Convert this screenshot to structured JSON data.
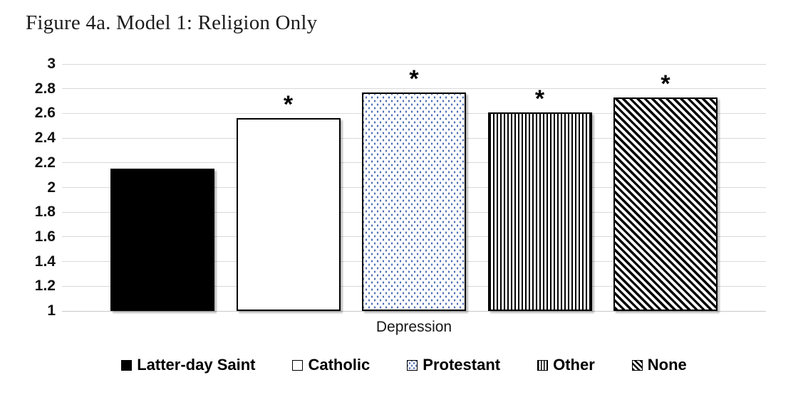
{
  "chart_data": {
    "type": "bar",
    "title": "Figure 4a. Model 1: Religion Only",
    "xlabel": "Depression",
    "ylabel": "",
    "ylim": [
      1,
      3
    ],
    "y_tick_step": 0.2,
    "y_tick_labels": [
      "3",
      "2.8",
      "2.6",
      "2.4",
      "2.2",
      "2",
      "1.8",
      "1.6",
      "1.4",
      "1.2",
      "1"
    ],
    "grid": "horizontal",
    "legend_position": "bottom",
    "categories": [
      "Latter-day Saint",
      "Catholic",
      "Protestant",
      "Other",
      "None"
    ],
    "series": [
      {
        "name": "Depression",
        "values": [
          2.15,
          2.56,
          2.77,
          2.61,
          2.73
        ]
      }
    ],
    "significance_marker": "*",
    "significant": [
      false,
      true,
      true,
      true,
      true
    ],
    "patterns": [
      "solid-black",
      "plain-white",
      "dots-blue",
      "vertical-stripes",
      "diagonal-stripes"
    ],
    "colors": {
      "bar_black": "#000000",
      "bar_border": "#000000",
      "dot_blue": "#4f6fb5",
      "gridline": "#d9d9d9",
      "text": "#1a1a1a"
    }
  },
  "legend": {
    "items": [
      {
        "label": "Latter-day Saint",
        "pattern": "solid-black"
      },
      {
        "label": "Catholic",
        "pattern": "plain-white"
      },
      {
        "label": "Protestant",
        "pattern": "dots-blue"
      },
      {
        "label": "Other",
        "pattern": "vertical-stripes"
      },
      {
        "label": "None",
        "pattern": "diagonal-stripes"
      }
    ]
  }
}
